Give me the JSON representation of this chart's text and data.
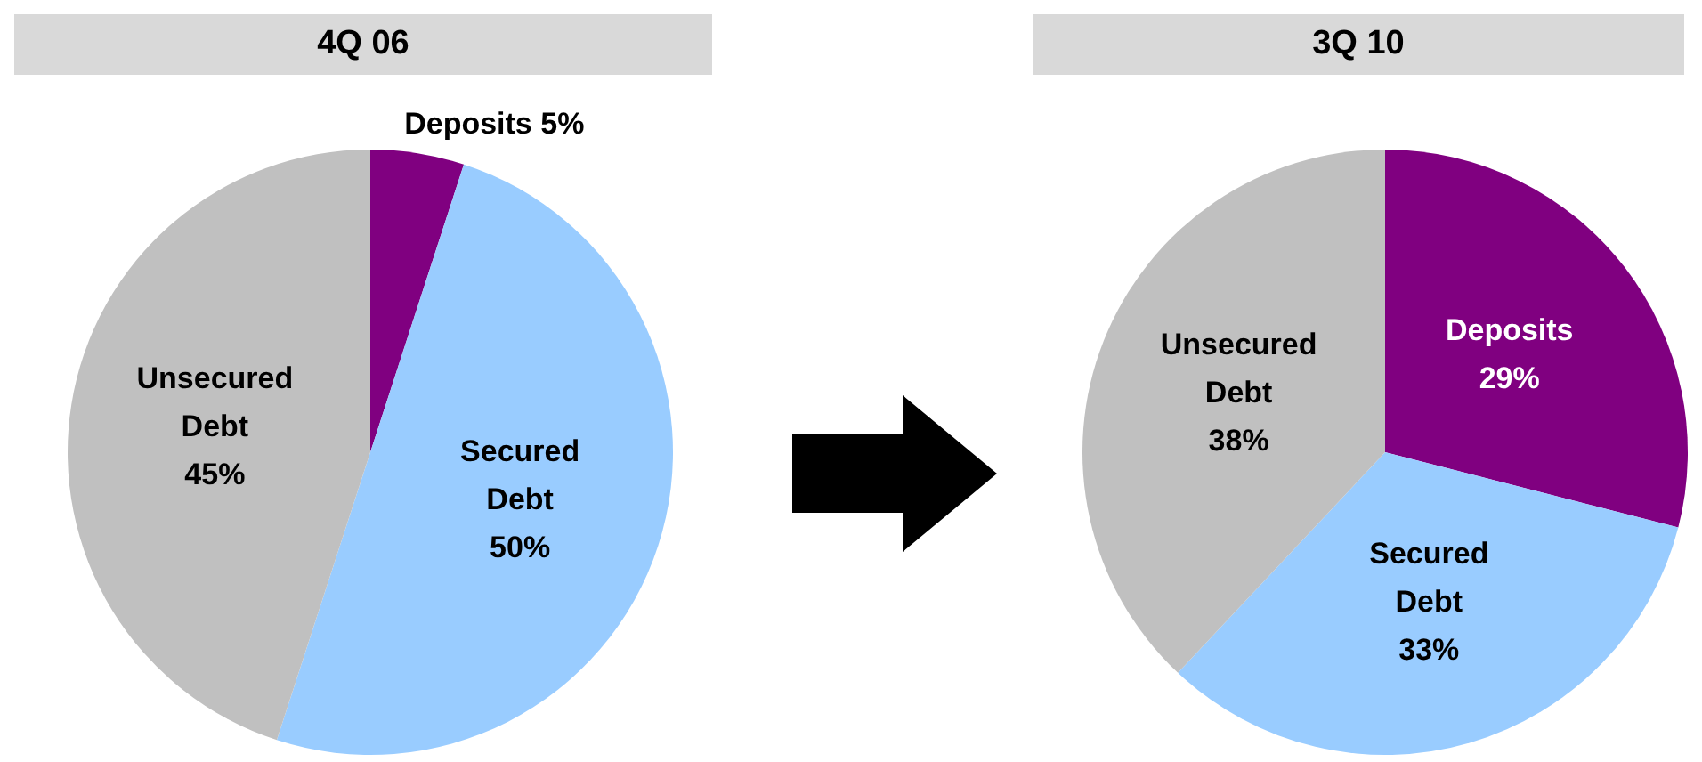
{
  "chart_data": [
    {
      "type": "pie",
      "title": "4Q 06",
      "categories": [
        "Deposits",
        "Secured Debt",
        "Unsecured Debt"
      ],
      "values": [
        5,
        50,
        45
      ],
      "colors": [
        "#800080",
        "#99ccff",
        "#c0c0c0"
      ],
      "value_labels": [
        "5%",
        "50%",
        "45%"
      ]
    },
    {
      "type": "pie",
      "title": "3Q 10",
      "categories": [
        "Deposits",
        "Secured Debt",
        "Unsecured Debt"
      ],
      "values": [
        29,
        33,
        38
      ],
      "colors": [
        "#800080",
        "#99ccff",
        "#c0c0c0"
      ],
      "value_labels": [
        "29%",
        "33%",
        "38%"
      ]
    }
  ]
}
